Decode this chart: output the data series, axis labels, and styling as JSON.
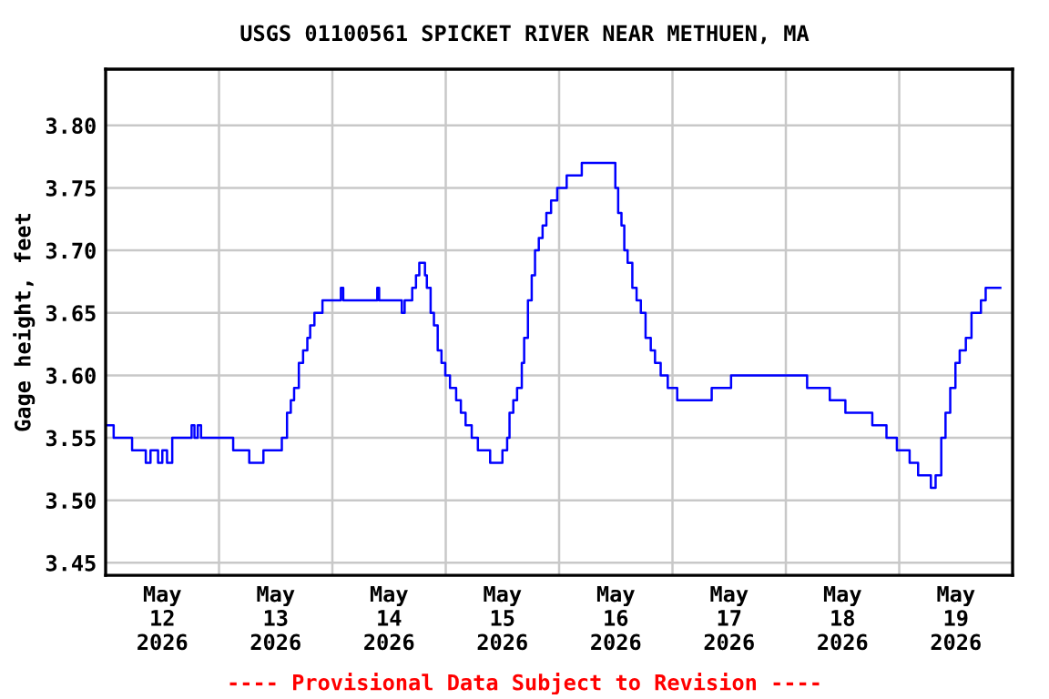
{
  "chart_data": {
    "type": "step",
    "title": "USGS 01100561 SPICKET RIVER NEAR METHUEN, MA",
    "ylabel": "Gage height, feet",
    "annotations": [
      "---- Provisional Data Subject to Revision ----"
    ],
    "xlim": [
      "2026-05-12T00:00",
      "2026-05-20T00:00"
    ],
    "xticks": [
      {
        "value": "2026-05-12T12:00",
        "label": "May\n12\n2026"
      },
      {
        "value": "2026-05-13T12:00",
        "label": "May\n13\n2026"
      },
      {
        "value": "2026-05-14T12:00",
        "label": "May\n14\n2026"
      },
      {
        "value": "2026-05-15T12:00",
        "label": "May\n15\n2026"
      },
      {
        "value": "2026-05-16T12:00",
        "label": "May\n16\n2026"
      },
      {
        "value": "2026-05-17T12:00",
        "label": "May\n17\n2026"
      },
      {
        "value": "2026-05-18T12:00",
        "label": "May\n18\n2026"
      },
      {
        "value": "2026-05-19T12:00",
        "label": "May\n19\n2026"
      },
      {
        "value": "2026-05-13T00:00",
        "label": null
      },
      {
        "value": "2026-05-14T00:00",
        "label": null
      },
      {
        "value": "2026-05-15T00:00",
        "label": null
      },
      {
        "value": "2026-05-16T00:00",
        "label": null
      },
      {
        "value": "2026-05-17T00:00",
        "label": null
      },
      {
        "value": "2026-05-18T00:00",
        "label": null
      },
      {
        "value": "2026-05-19T00:00",
        "label": null
      }
    ],
    "ylim": [
      3.44,
      3.845
    ],
    "yticks": [
      3.45,
      {
        "value": 3.5,
        "label": "3.50"
      },
      3.55,
      {
        "value": 3.6,
        "label": "3.60"
      },
      3.65,
      {
        "value": 3.7,
        "label": "3.70"
      },
      3.75,
      {
        "value": 3.8,
        "label": "3.80"
      }
    ],
    "grid": true,
    "legend": false,
    "series": [
      {
        "color": "#0000ff",
        "x": [
          "2026-05-12T00:08",
          "2026-05-12T01:42",
          "2026-05-12T05:36",
          "2026-05-12T08:30",
          "2026-05-12T09:30",
          "2026-05-12T11:06",
          "2026-05-12T12:00",
          "2026-05-12T13:00",
          "2026-05-12T14:06",
          "2026-05-12T18:12",
          "2026-05-12T18:48",
          "2026-05-12T19:30",
          "2026-05-12T20:12",
          "2026-05-13T03:00",
          "2026-05-13T06:24",
          "2026-05-13T09:24",
          "2026-05-13T13:18",
          "2026-05-13T14:24",
          "2026-05-13T15:12",
          "2026-05-13T15:54",
          "2026-05-13T16:54",
          "2026-05-13T17:48",
          "2026-05-13T18:42",
          "2026-05-13T19:18",
          "2026-05-13T20:12",
          "2026-05-13T21:54",
          "2026-05-14T01:48",
          "2026-05-14T02:18",
          "2026-05-14T09:30",
          "2026-05-14T09:54",
          "2026-05-14T14:42",
          "2026-05-14T15:18",
          "2026-05-14T16:54",
          "2026-05-14T17:42",
          "2026-05-14T18:24",
          "2026-05-14T19:36",
          "2026-05-14T20:00",
          "2026-05-14T20:48",
          "2026-05-14T21:30",
          "2026-05-14T22:18",
          "2026-05-14T23:06",
          "2026-05-14T23:54",
          "2026-05-15T00:54",
          "2026-05-15T02:12",
          "2026-05-15T03:12",
          "2026-05-15T04:12",
          "2026-05-15T05:30",
          "2026-05-15T06:48",
          "2026-05-15T09:24",
          "2026-05-15T12:00",
          "2026-05-15T13:00",
          "2026-05-15T13:30",
          "2026-05-15T14:18",
          "2026-05-15T15:06",
          "2026-05-15T16:06",
          "2026-05-15T16:36",
          "2026-05-15T17:24",
          "2026-05-15T18:12",
          "2026-05-15T18:54",
          "2026-05-15T19:42",
          "2026-05-15T20:30",
          "2026-05-15T21:18",
          "2026-05-15T22:18",
          "2026-05-15T23:36",
          "2026-05-16T01:36",
          "2026-05-16T04:48",
          "2026-05-16T11:54",
          "2026-05-16T12:30",
          "2026-05-16T13:12",
          "2026-05-16T13:48",
          "2026-05-16T14:30",
          "2026-05-16T15:30",
          "2026-05-16T16:24",
          "2026-05-16T17:18",
          "2026-05-16T18:18",
          "2026-05-16T19:24",
          "2026-05-16T20:18",
          "2026-05-16T21:30",
          "2026-05-16T23:00",
          "2026-05-17T01:00",
          "2026-05-17T08:18",
          "2026-05-17T12:24",
          "2026-05-18T04:30",
          "2026-05-18T09:18",
          "2026-05-18T12:36",
          "2026-05-18T18:18",
          "2026-05-18T21:18",
          "2026-05-18T23:30",
          "2026-05-19T02:12",
          "2026-05-19T04:00",
          "2026-05-19T06:42",
          "2026-05-19T07:42",
          "2026-05-19T08:54",
          "2026-05-19T09:48",
          "2026-05-19T10:48",
          "2026-05-19T11:54",
          "2026-05-19T12:48",
          "2026-05-19T14:06",
          "2026-05-19T15:18",
          "2026-05-19T17:18",
          "2026-05-19T18:18",
          "2026-05-19T21:24"
        ],
        "values": [
          3.56,
          3.55,
          3.54,
          3.53,
          3.54,
          3.53,
          3.54,
          3.53,
          3.55,
          3.56,
          3.55,
          3.56,
          3.55,
          3.54,
          3.53,
          3.54,
          3.55,
          3.57,
          3.58,
          3.59,
          3.61,
          3.62,
          3.63,
          3.64,
          3.65,
          3.66,
          3.67,
          3.66,
          3.67,
          3.66,
          3.65,
          3.66,
          3.67,
          3.68,
          3.69,
          3.68,
          3.67,
          3.65,
          3.64,
          3.62,
          3.61,
          3.6,
          3.59,
          3.58,
          3.57,
          3.56,
          3.55,
          3.54,
          3.53,
          3.54,
          3.55,
          3.57,
          3.58,
          3.59,
          3.61,
          3.63,
          3.66,
          3.68,
          3.7,
          3.71,
          3.72,
          3.73,
          3.74,
          3.75,
          3.76,
          3.77,
          3.75,
          3.73,
          3.72,
          3.7,
          3.69,
          3.67,
          3.66,
          3.65,
          3.63,
          3.62,
          3.61,
          3.6,
          3.59,
          3.58,
          3.59,
          3.6,
          3.59,
          3.58,
          3.57,
          3.56,
          3.55,
          3.54,
          3.53,
          3.52,
          3.51,
          3.52,
          3.55,
          3.57,
          3.59,
          3.61,
          3.62,
          3.63,
          3.65,
          3.66,
          3.67,
          3.67
        ]
      }
    ]
  }
}
